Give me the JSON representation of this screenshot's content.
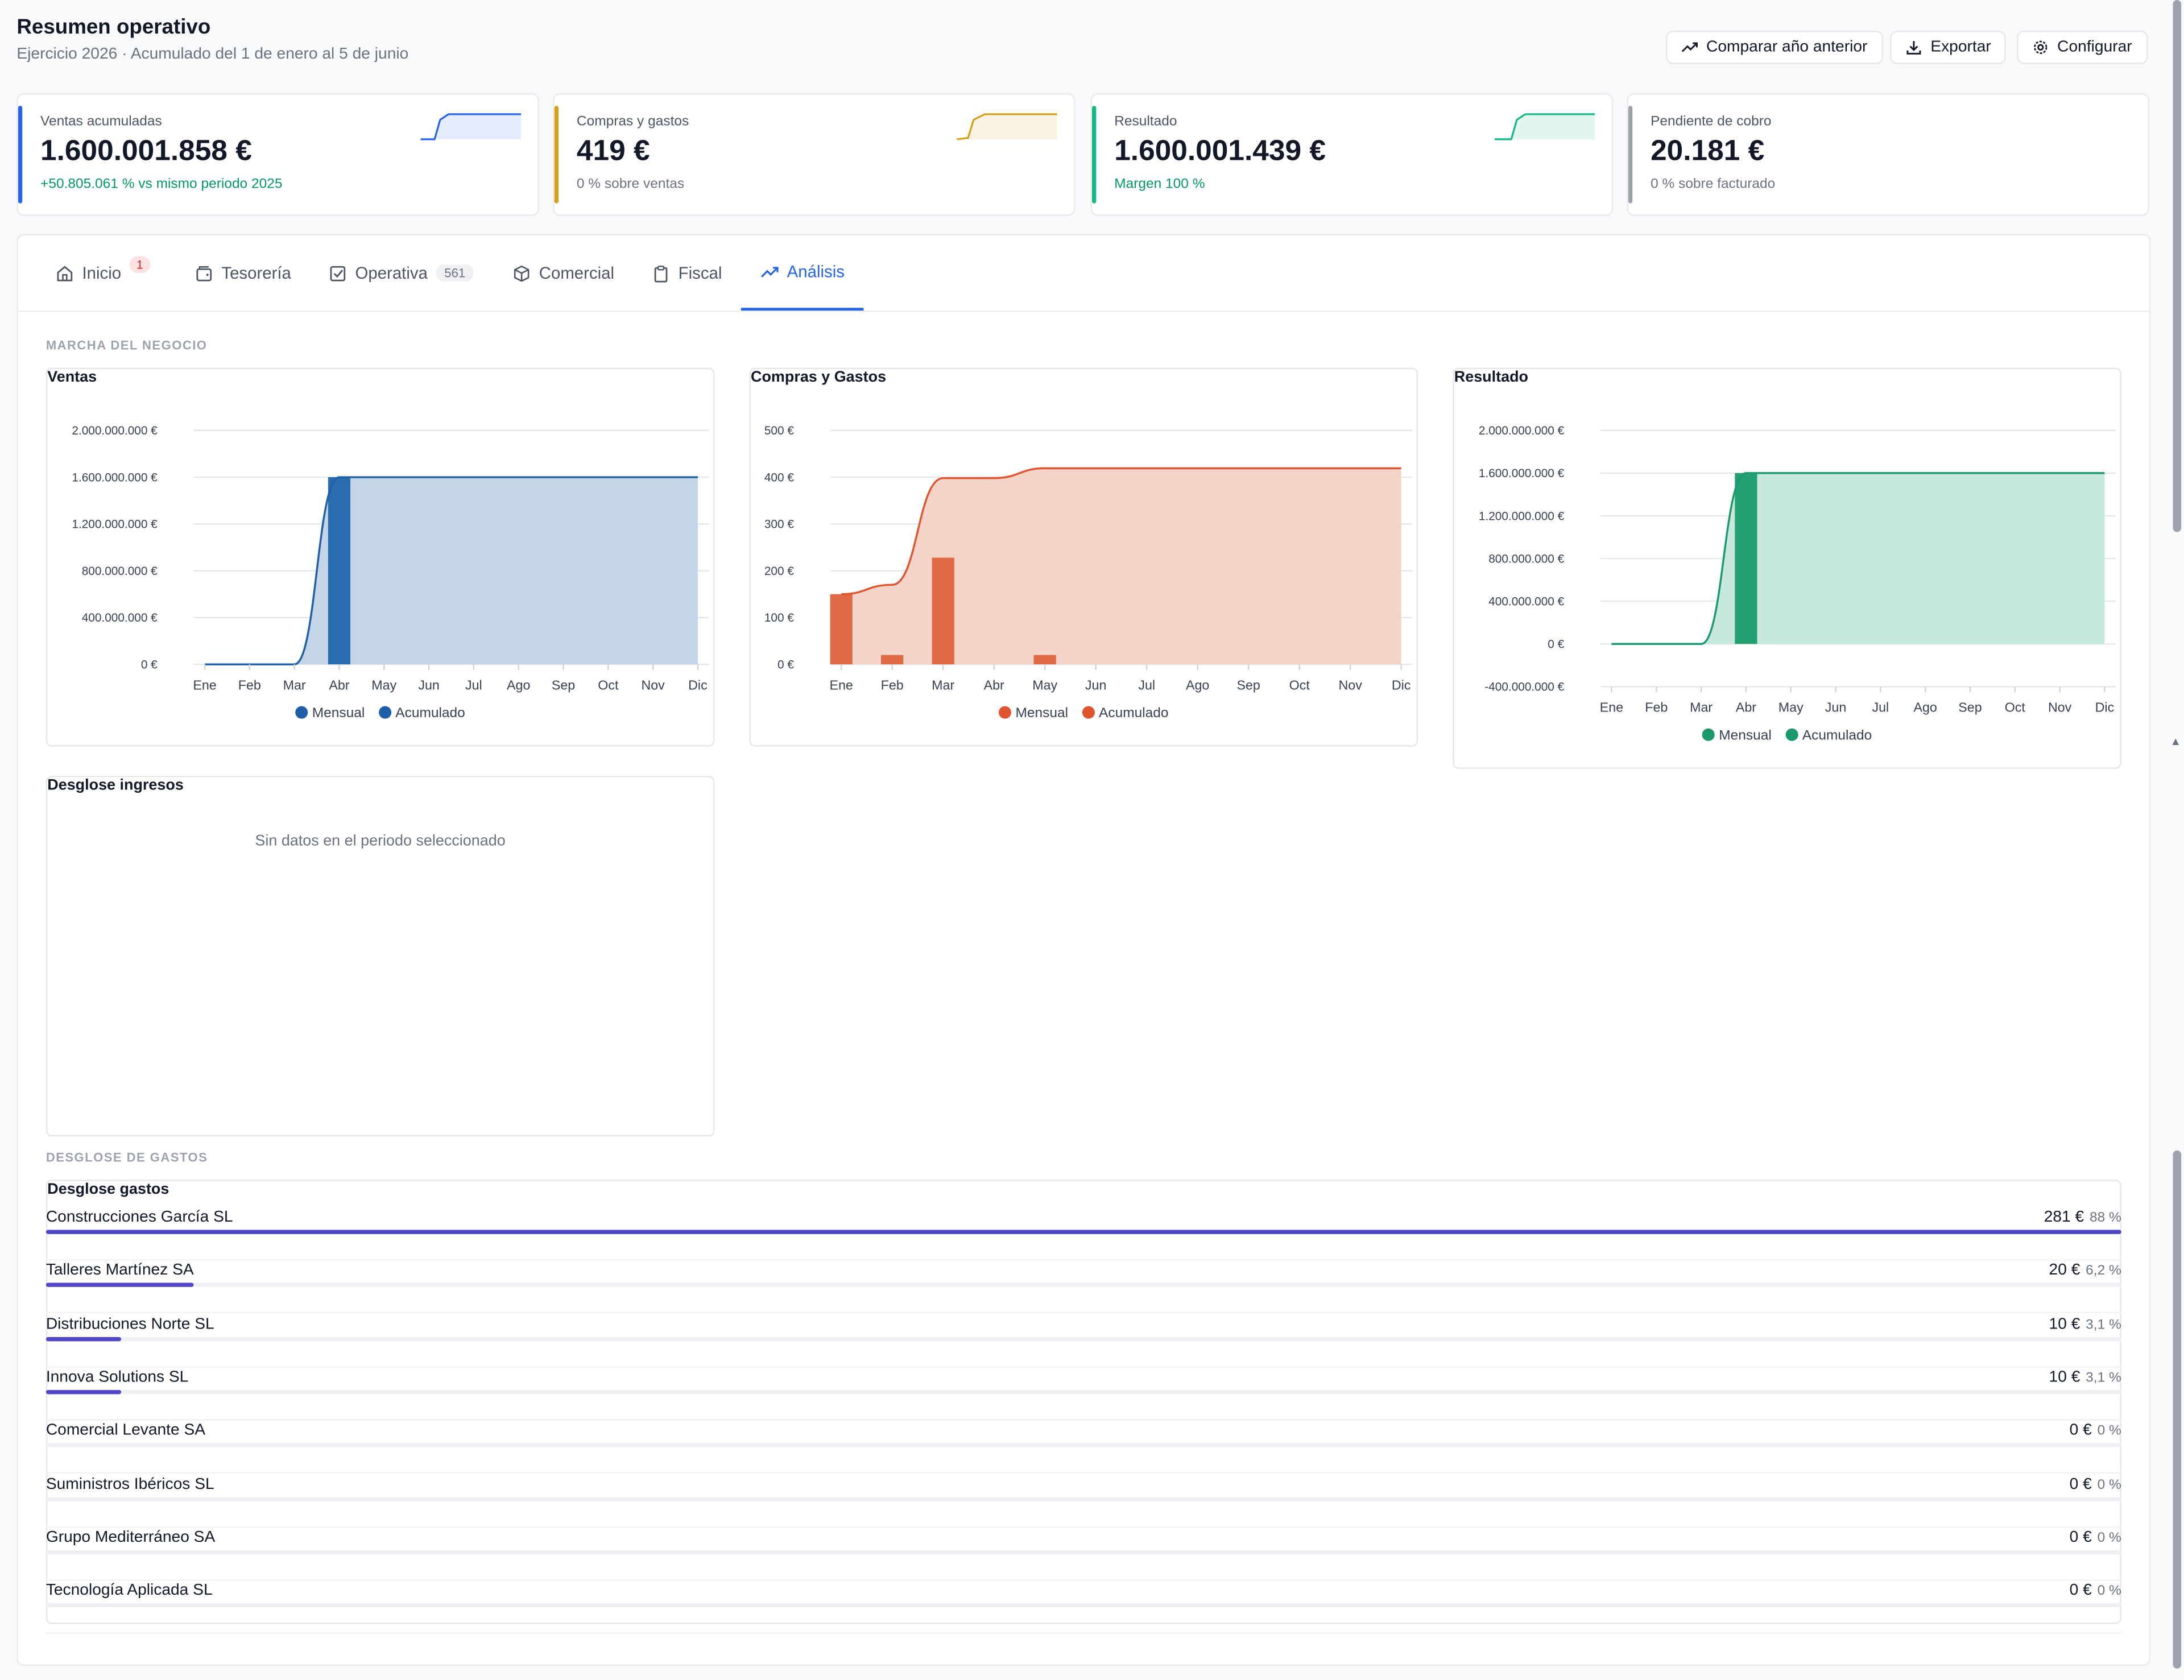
{
  "header": {
    "title": "Resumen operativo",
    "subtitle": "Ejercicio 2026 · Acumulado del 1 de enero al 5 de junio",
    "buttons": {
      "compare": "Comparar año anterior",
      "export": "Exportar",
      "configure": "Configurar"
    }
  },
  "kpis": [
    {
      "label": "Ventas acumuladas",
      "value": "1.600.001.858 €",
      "sub": "+50.805.061 % vs mismo periodo 2025",
      "accent": "#2563eb",
      "sub_color": "#059669"
    },
    {
      "label": "Compras y gastos",
      "value": "419 €",
      "sub": "0 % sobre ventas",
      "accent": "#d4a017",
      "sub_color": "#6b7280"
    },
    {
      "label": "Resultado",
      "value": "1.600.001.439 €",
      "sub": "Margen 100 %",
      "accent": "#10b981",
      "sub_color": "#059669"
    },
    {
      "label": "Pendiente de cobro",
      "value": "20.181 €",
      "sub": "0 % sobre facturado",
      "accent": "#9ca3af",
      "sub_color": "#6b7280"
    }
  ],
  "tabs": [
    {
      "label": "Inicio",
      "badge": "1",
      "icon": "home-icon"
    },
    {
      "label": "Tesorería",
      "icon": "wallet-icon"
    },
    {
      "label": "Operativa",
      "badge": "561",
      "icon": "checkbox-icon"
    },
    {
      "label": "Comercial",
      "icon": "box-icon"
    },
    {
      "label": "Fiscal",
      "icon": "clipboard-icon"
    },
    {
      "label": "Análisis",
      "icon": "trend-icon",
      "active": true
    }
  ],
  "sections": {
    "business": "MARCHA DEL NEGOCIO",
    "expenses": "DESGLOSE DE GASTOS"
  },
  "months": [
    "Ene",
    "Feb",
    "Mar",
    "Abr",
    "May",
    "Jun",
    "Jul",
    "Ago",
    "Sep",
    "Oct",
    "Nov",
    "Dic"
  ],
  "legend": {
    "monthly": "Mensual",
    "cumulative": "Acumulado"
  },
  "chart_data": [
    {
      "type": "bar",
      "title": "Ventas",
      "categories": [
        "Ene",
        "Feb",
        "Mar",
        "Abr",
        "May",
        "Jun",
        "Jul",
        "Ago",
        "Sep",
        "Oct",
        "Nov",
        "Dic"
      ],
      "yticks": [
        "0 €",
        "400.000.000 €",
        "800.000.000 €",
        "1.200.000.000 €",
        "1.600.000.000 €",
        "2.000.000.000 €"
      ],
      "ylim": [
        0,
        2000000000
      ],
      "series": [
        {
          "name": "Mensual",
          "type": "bar",
          "values": [
            0,
            0,
            0,
            1600000000,
            0,
            0,
            0,
            0,
            0,
            0,
            0,
            0
          ]
        },
        {
          "name": "Acumulado",
          "type": "area",
          "values": [
            0,
            0,
            0,
            1600000000,
            1600000000,
            1600000000,
            1600000000,
            1600000000,
            1600000000,
            1600000000,
            1600000000,
            1600000000
          ]
        }
      ],
      "colors": {
        "bar": "#2a6cb0",
        "line": "#1f5fa8",
        "area": "#c5d5e8"
      }
    },
    {
      "type": "bar",
      "title": "Compras y Gastos",
      "categories": [
        "Ene",
        "Feb",
        "Mar",
        "Abr",
        "May",
        "Jun",
        "Jul",
        "Ago",
        "Sep",
        "Oct",
        "Nov",
        "Dic"
      ],
      "yticks": [
        "0 €",
        "100 €",
        "200 €",
        "300 €",
        "400 €",
        "500 €"
      ],
      "ylim": [
        0,
        500
      ],
      "series": [
        {
          "name": "Mensual",
          "type": "bar",
          "values": [
            150,
            20,
            228,
            0,
            20,
            0,
            0,
            0,
            0,
            0,
            0,
            0
          ]
        },
        {
          "name": "Acumulado",
          "type": "area",
          "values": [
            150,
            170,
            398,
            398,
            419,
            419,
            419,
            419,
            419,
            419,
            419,
            419
          ]
        }
      ],
      "colors": {
        "bar": "#e06a45",
        "line": "#e0552f",
        "area": "#f4d3c8"
      }
    },
    {
      "type": "bar",
      "title": "Resultado",
      "categories": [
        "Ene",
        "Feb",
        "Mar",
        "Abr",
        "May",
        "Jun",
        "Jul",
        "Ago",
        "Sep",
        "Oct",
        "Nov",
        "Dic"
      ],
      "yticks": [
        "-400.000.000 €",
        "0 €",
        "400.000.000 €",
        "800.000.000 €",
        "1.200.000.000 €",
        "1.600.000.000 €",
        "2.000.000.000 €"
      ],
      "ylim": [
        -400000000,
        2000000000
      ],
      "series": [
        {
          "name": "Mensual",
          "type": "bar",
          "values": [
            0,
            0,
            0,
            1600000000,
            0,
            0,
            0,
            0,
            0,
            0,
            0,
            0
          ]
        },
        {
          "name": "Acumulado",
          "type": "area",
          "values": [
            0,
            0,
            0,
            1600000000,
            1600000000,
            1600000000,
            1600000000,
            1600000000,
            1600000000,
            1600000000,
            1600000000,
            1600000000
          ]
        }
      ],
      "colors": {
        "bar": "#22a070",
        "line": "#1a9a6a",
        "area": "#c7e8dc"
      }
    }
  ],
  "income": {
    "title": "Desglose ingresos",
    "empty": "Sin datos en el periodo seleccionado"
  },
  "expenses": {
    "title": "Desglose gastos",
    "rows": [
      {
        "name": "Construcciones García SL",
        "amount": "281 €",
        "pct": "88 %",
        "fraction": 1.0
      },
      {
        "name": "Talleres Martínez SA",
        "amount": "20 €",
        "pct": "6,2 %",
        "fraction": 0.071
      },
      {
        "name": "Distribuciones Norte SL",
        "amount": "10 €",
        "pct": "3,1 %",
        "fraction": 0.036
      },
      {
        "name": "Innova Solutions SL",
        "amount": "10 €",
        "pct": "3,1 %",
        "fraction": 0.036
      },
      {
        "name": "Comercial Levante SA",
        "amount": "0 €",
        "pct": "0 %",
        "fraction": 0
      },
      {
        "name": "Suministros Ibéricos SL",
        "amount": "0 €",
        "pct": "0 %",
        "fraction": 0
      },
      {
        "name": "Grupo Mediterráneo SA",
        "amount": "0 €",
        "pct": "0 %",
        "fraction": 0
      },
      {
        "name": "Tecnología Aplicada SL",
        "amount": "0 €",
        "pct": "0 %",
        "fraction": 0
      }
    ]
  }
}
